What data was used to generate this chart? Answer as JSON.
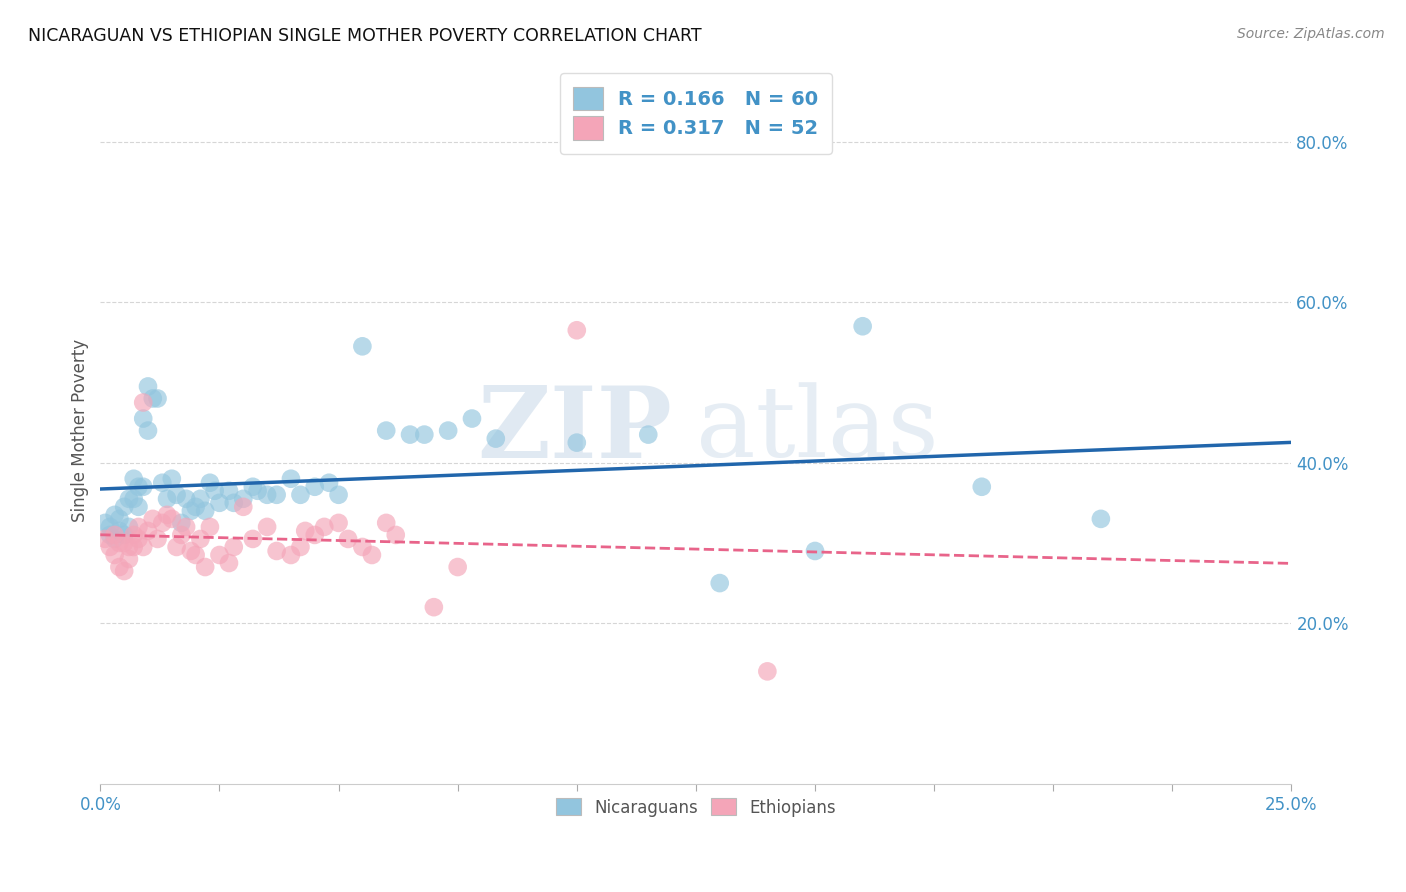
{
  "title": "NICARAGUAN VS ETHIOPIAN SINGLE MOTHER POVERTY CORRELATION CHART",
  "source": "Source: ZipAtlas.com",
  "ylabel": "Single Mother Poverty",
  "legend_label1": "Nicaraguans",
  "legend_label2": "Ethiopians",
  "R1": "0.166",
  "N1": "60",
  "R2": "0.317",
  "N2": "52",
  "blue_color": "#92c5de",
  "pink_color": "#f4a5b8",
  "trend_blue": "#2166ac",
  "trend_pink": "#e8648a",
  "watermark_zip": "ZIP",
  "watermark_atlas": "atlas",
  "xlim": [
    0.0,
    0.25
  ],
  "ylim": [
    0.0,
    0.88
  ],
  "blue_scatter": [
    [
      0.001,
      0.325
    ],
    [
      0.002,
      0.32
    ],
    [
      0.002,
      0.31
    ],
    [
      0.003,
      0.335
    ],
    [
      0.003,
      0.305
    ],
    [
      0.004,
      0.33
    ],
    [
      0.004,
      0.315
    ],
    [
      0.005,
      0.345
    ],
    [
      0.005,
      0.31
    ],
    [
      0.006,
      0.355
    ],
    [
      0.006,
      0.32
    ],
    [
      0.007,
      0.38
    ],
    [
      0.007,
      0.355
    ],
    [
      0.008,
      0.37
    ],
    [
      0.008,
      0.345
    ],
    [
      0.009,
      0.455
    ],
    [
      0.009,
      0.37
    ],
    [
      0.01,
      0.495
    ],
    [
      0.01,
      0.44
    ],
    [
      0.011,
      0.48
    ],
    [
      0.012,
      0.48
    ],
    [
      0.013,
      0.375
    ],
    [
      0.014,
      0.355
    ],
    [
      0.015,
      0.38
    ],
    [
      0.016,
      0.36
    ],
    [
      0.017,
      0.325
    ],
    [
      0.018,
      0.355
    ],
    [
      0.019,
      0.34
    ],
    [
      0.02,
      0.345
    ],
    [
      0.021,
      0.355
    ],
    [
      0.022,
      0.34
    ],
    [
      0.023,
      0.375
    ],
    [
      0.024,
      0.365
    ],
    [
      0.025,
      0.35
    ],
    [
      0.027,
      0.365
    ],
    [
      0.028,
      0.35
    ],
    [
      0.03,
      0.355
    ],
    [
      0.032,
      0.37
    ],
    [
      0.033,
      0.365
    ],
    [
      0.035,
      0.36
    ],
    [
      0.037,
      0.36
    ],
    [
      0.04,
      0.38
    ],
    [
      0.042,
      0.36
    ],
    [
      0.045,
      0.37
    ],
    [
      0.048,
      0.375
    ],
    [
      0.05,
      0.36
    ],
    [
      0.055,
      0.545
    ],
    [
      0.06,
      0.44
    ],
    [
      0.065,
      0.435
    ],
    [
      0.068,
      0.435
    ],
    [
      0.073,
      0.44
    ],
    [
      0.078,
      0.455
    ],
    [
      0.083,
      0.43
    ],
    [
      0.1,
      0.425
    ],
    [
      0.115,
      0.435
    ],
    [
      0.13,
      0.25
    ],
    [
      0.15,
      0.29
    ],
    [
      0.16,
      0.57
    ],
    [
      0.185,
      0.37
    ],
    [
      0.21,
      0.33
    ]
  ],
  "pink_scatter": [
    [
      0.001,
      0.305
    ],
    [
      0.002,
      0.295
    ],
    [
      0.003,
      0.285
    ],
    [
      0.003,
      0.31
    ],
    [
      0.004,
      0.27
    ],
    [
      0.004,
      0.3
    ],
    [
      0.005,
      0.265
    ],
    [
      0.005,
      0.3
    ],
    [
      0.006,
      0.295
    ],
    [
      0.006,
      0.28
    ],
    [
      0.007,
      0.31
    ],
    [
      0.007,
      0.295
    ],
    [
      0.008,
      0.32
    ],
    [
      0.008,
      0.305
    ],
    [
      0.009,
      0.295
    ],
    [
      0.009,
      0.475
    ],
    [
      0.01,
      0.315
    ],
    [
      0.011,
      0.33
    ],
    [
      0.012,
      0.305
    ],
    [
      0.013,
      0.325
    ],
    [
      0.014,
      0.335
    ],
    [
      0.015,
      0.33
    ],
    [
      0.016,
      0.295
    ],
    [
      0.017,
      0.31
    ],
    [
      0.018,
      0.32
    ],
    [
      0.019,
      0.29
    ],
    [
      0.02,
      0.285
    ],
    [
      0.021,
      0.305
    ],
    [
      0.022,
      0.27
    ],
    [
      0.023,
      0.32
    ],
    [
      0.025,
      0.285
    ],
    [
      0.027,
      0.275
    ],
    [
      0.028,
      0.295
    ],
    [
      0.03,
      0.345
    ],
    [
      0.032,
      0.305
    ],
    [
      0.035,
      0.32
    ],
    [
      0.037,
      0.29
    ],
    [
      0.04,
      0.285
    ],
    [
      0.042,
      0.295
    ],
    [
      0.043,
      0.315
    ],
    [
      0.045,
      0.31
    ],
    [
      0.047,
      0.32
    ],
    [
      0.05,
      0.325
    ],
    [
      0.052,
      0.305
    ],
    [
      0.055,
      0.295
    ],
    [
      0.057,
      0.285
    ],
    [
      0.06,
      0.325
    ],
    [
      0.062,
      0.31
    ],
    [
      0.07,
      0.22
    ],
    [
      0.075,
      0.27
    ],
    [
      0.1,
      0.565
    ],
    [
      0.14,
      0.14
    ]
  ]
}
